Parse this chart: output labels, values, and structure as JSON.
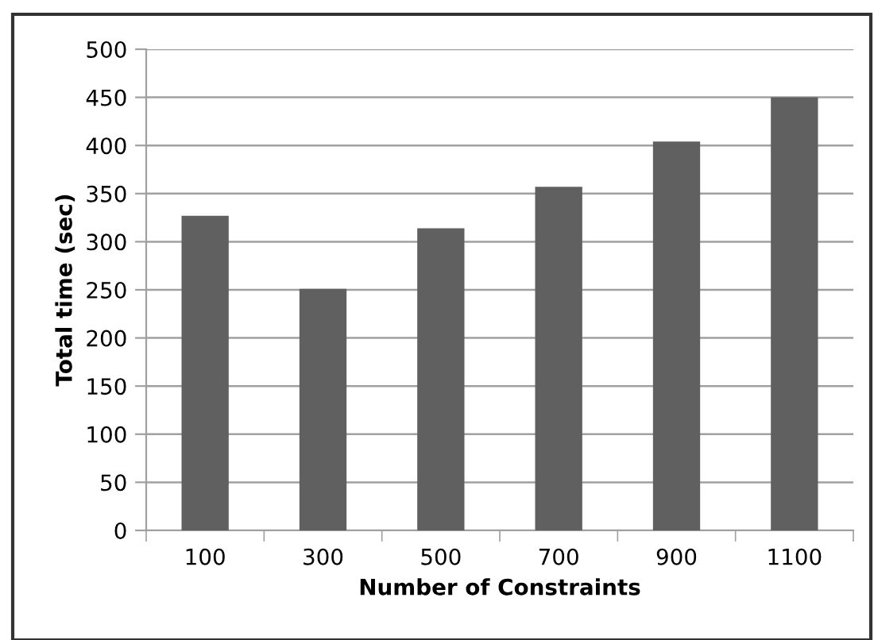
{
  "chart_data": {
    "type": "bar",
    "xlabel": "Number of Constraints",
    "ylabel": "Total time (sec)",
    "categories": [
      "100",
      "300",
      "500",
      "700",
      "900",
      "1100"
    ],
    "values": [
      327,
      251,
      314,
      357,
      404,
      450
    ],
    "color": "#606060",
    "ylim": [
      0,
      500
    ],
    "yticks": [
      0,
      50,
      100,
      150,
      200,
      250,
      300,
      350,
      400,
      450,
      500
    ],
    "grid": "y"
  }
}
